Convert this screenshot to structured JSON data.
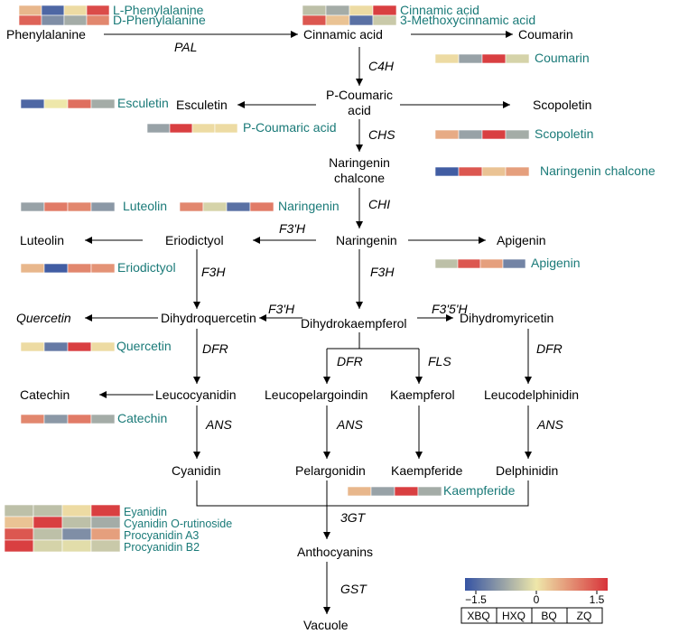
{
  "colors": {
    "text": "#000000",
    "metabolite_label": "#1a7a78",
    "heatmap_low": "#3553a3",
    "heatmap_mid": "#eee7aa",
    "heatmap_high": "#d8333a"
  },
  "nodes": {
    "phenylalanine": "Phenylalanine",
    "cinnamic_acid": "Cinnamic acid",
    "coumarin": "Coumarin",
    "p_coumaric_acid_line1": "P-Coumaric",
    "p_coumaric_acid_line2": "acid",
    "esculetin": "Esculetin",
    "scopoletin": "Scopoletin",
    "naringenin_chalcone_line1": "Naringenin",
    "naringenin_chalcone_line2": "chalcone",
    "naringenin": "Naringenin",
    "eriodictyol": "Eriodictyol",
    "luteolin": "Luteolin",
    "apigenin": "Apigenin",
    "dihydroquercetin": "Dihydroquercetin",
    "quercetin": "Quercetin",
    "dihydrokaempferol": "Dihydrokaempferol",
    "dihydromyricetin": "Dihydromyricetin",
    "leucocyanidin": "Leucocyanidin",
    "catechin": "Catechin",
    "leucopelargoindin": "Leucopelargoindin",
    "kaempferol": "Kaempferol",
    "leucodelphinidin": "Leucodelphinidin",
    "cyanidin": "Cyanidin",
    "pelargonidin": "Pelargonidin",
    "kaempferide": "Kaempferide",
    "delphinidin": "Delphinidin",
    "anthocyanins": "Anthocyanins",
    "vacuole": "Vacuole"
  },
  "enzymes": {
    "pal": "PAL",
    "c4h": "C4H",
    "chs": "CHS",
    "chi": "CHI",
    "f3h_main": "F3H",
    "f3h_left": "F3H",
    "f3prime_h_top": "F3'H",
    "f3prime_h_mid": "F3'H",
    "f3prime5prime_h": "F3'5'H",
    "dfr_left": "DFR",
    "dfr_mid": "DFR",
    "fls": "FLS",
    "dfr_right": "DFR",
    "ans_left": "ANS",
    "ans_mid": "ANS",
    "ans_right": "ANS",
    "three_gt": "3GT",
    "gst": "GST"
  },
  "heatmaps": [
    {
      "id": "phenylalanine",
      "rows": [
        {
          "label": "L-Phenylalanine",
          "values": [
            0.4,
            -1.3,
            0.1,
            1.3
          ]
        },
        {
          "label": "D-Phenylalanine",
          "values": [
            1.1,
            -0.9,
            -0.6,
            0.8
          ]
        }
      ]
    },
    {
      "id": "cinnamic",
      "rows": [
        {
          "label": "Cinnamic acid",
          "values": [
            -0.4,
            -0.6,
            0.1,
            1.4
          ]
        },
        {
          "label": "3-Methoxycinnamic acid",
          "values": [
            1.2,
            0.3,
            -1.2,
            -0.3
          ]
        }
      ]
    },
    {
      "id": "coumarin",
      "rows": [
        {
          "label": "Coumarin",
          "values": [
            0.1,
            -0.7,
            1.4,
            -0.2
          ]
        }
      ]
    },
    {
      "id": "esculetin",
      "rows": [
        {
          "label": "Esculetin",
          "values": [
            -1.3,
            0.0,
            1.0,
            -0.6
          ]
        }
      ]
    },
    {
      "id": "pcoumaric",
      "rows": [
        {
          "label": "P-Coumaric acid",
          "values": [
            -0.7,
            1.4,
            0.1,
            0.1
          ]
        }
      ]
    },
    {
      "id": "scopoletin",
      "rows": [
        {
          "label": "Scopoletin",
          "values": [
            0.5,
            -0.7,
            1.4,
            -0.6
          ]
        }
      ]
    },
    {
      "id": "naringenin_chalcone",
      "rows": [
        {
          "label": "Naringenin chalcone",
          "values": [
            -1.4,
            1.2,
            0.3,
            0.6
          ]
        }
      ]
    },
    {
      "id": "luteolin",
      "rows": [
        {
          "label": "Luteolin",
          "values": [
            -0.7,
            0.9,
            0.8,
            -0.8
          ]
        }
      ]
    },
    {
      "id": "naringenin",
      "rows": [
        {
          "label": "Naringenin",
          "values": [
            0.8,
            -0.2,
            -1.2,
            0.9
          ]
        }
      ]
    },
    {
      "id": "eriodictyol",
      "rows": [
        {
          "label": "Eriodictyol",
          "values": [
            0.4,
            -1.4,
            0.8,
            0.7
          ]
        }
      ]
    },
    {
      "id": "apigenin",
      "rows": [
        {
          "label": "Apigenin",
          "values": [
            -0.4,
            1.2,
            0.6,
            -1.0
          ]
        }
      ]
    },
    {
      "id": "quercetin",
      "rows": [
        {
          "label": "Quercetin",
          "values": [
            0.1,
            -1.1,
            1.4,
            0.1
          ]
        }
      ]
    },
    {
      "id": "catechin",
      "rows": [
        {
          "label": "Catechin",
          "values": [
            0.8,
            -0.8,
            0.9,
            -0.6
          ]
        }
      ]
    },
    {
      "id": "kaempferide",
      "rows": [
        {
          "label": "Kaempferide",
          "values": [
            0.4,
            -0.7,
            1.4,
            -0.6
          ]
        }
      ]
    },
    {
      "id": "cyanidin_group",
      "rows": [
        {
          "label": "Eyanidin",
          "values": [
            -0.4,
            -0.4,
            0.1,
            1.4
          ]
        },
        {
          "label": "Cyanidin O-rutinoside",
          "values": [
            0.3,
            1.4,
            -0.4,
            -0.6
          ]
        },
        {
          "label": "Procyanidin A3",
          "values": [
            1.2,
            -0.4,
            -0.9,
            0.6
          ]
        },
        {
          "label": "Procyanidin B2",
          "values": [
            1.4,
            -0.2,
            -0.1,
            -0.3
          ]
        }
      ]
    }
  ],
  "legend": {
    "min_label": "−1.5",
    "mid_label": "0",
    "max_label": "1.5",
    "min": -1.5,
    "max": 1.5,
    "groups": [
      "XBQ",
      "HXQ",
      "BQ",
      "ZQ"
    ]
  }
}
